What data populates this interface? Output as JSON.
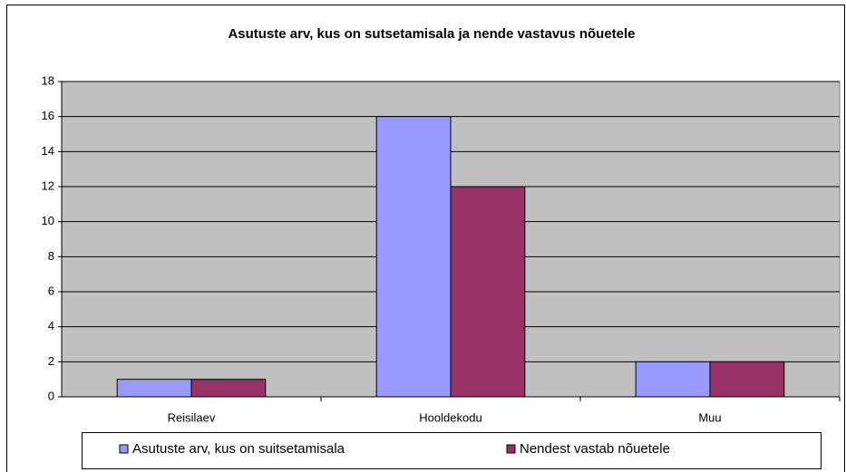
{
  "chart_data": {
    "type": "bar",
    "title": "Asutuste arv, kus on sutsetamisala ja nende vastavus nõuetele",
    "categories": [
      "Reisilaev",
      "Hooldekodu",
      "Muu"
    ],
    "series": [
      {
        "name": "Asutuste arv, kus on suitsetamisala",
        "color": "#9999ff",
        "values": [
          1,
          16,
          2
        ]
      },
      {
        "name": "Nendest vastab nõuetele",
        "color": "#993366",
        "values": [
          1,
          12,
          2
        ]
      }
    ],
    "ylim": [
      0,
      18
    ],
    "yticks": [
      0,
      2,
      4,
      6,
      8,
      10,
      12,
      14,
      16,
      18
    ],
    "grid": true,
    "legend": "bottom"
  }
}
